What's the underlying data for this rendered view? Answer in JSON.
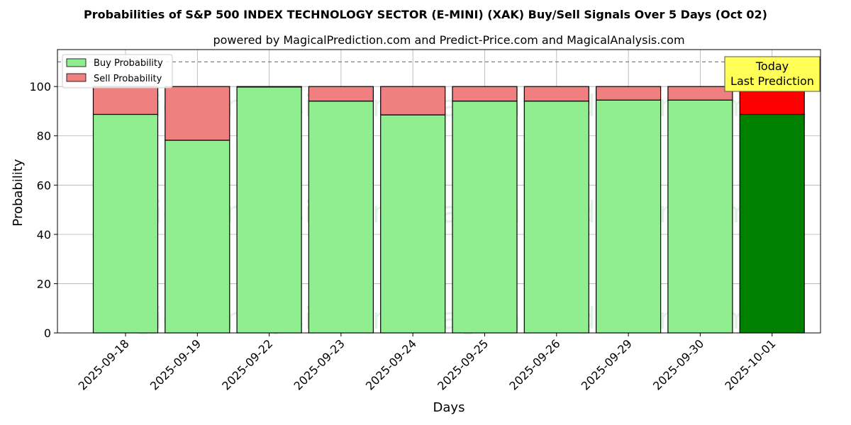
{
  "chart_data": {
    "type": "bar",
    "stacked": true,
    "title": "Probabilities of S&P 500 INDEX TECHNOLOGY SECTOR (E-MINI) (XAK) Buy/Sell Signals Over 5 Days (Oct 02)",
    "subtitle": "powered by MagicalPrediction.com and Predict-Price.com and MagicalAnalysis.com",
    "xlabel": "Days",
    "ylabel": "Probability",
    "ylim": [
      0,
      115
    ],
    "yticks": [
      0,
      20,
      40,
      60,
      80,
      100
    ],
    "reference_line": 110,
    "grid": true,
    "legend_position": "top-left",
    "categories": [
      "2025-09-18",
      "2025-09-19",
      "2025-09-22",
      "2025-09-23",
      "2025-09-24",
      "2025-09-25",
      "2025-09-26",
      "2025-09-29",
      "2025-09-30",
      "2025-10-01"
    ],
    "series": [
      {
        "name": "Buy Probability",
        "color": "#90ee90",
        "highlight_color": "#008000",
        "values": [
          88.7,
          78.2,
          99.8,
          94.1,
          88.5,
          94.1,
          94.1,
          94.5,
          94.5,
          88.7
        ]
      },
      {
        "name": "Sell Probability",
        "color": "#f08080",
        "highlight_color": "#ff0000",
        "values": [
          11.3,
          21.8,
          0.2,
          5.9,
          11.5,
          5.9,
          5.9,
          5.5,
          5.5,
          11.3
        ]
      }
    ],
    "highlight_index": 9,
    "annotation": {
      "line1": "Today",
      "line2": "Last Prediction",
      "color": "#ffff55"
    },
    "watermarks": [
      "MagicalAnalysis.com",
      "MagicalPrediction.com"
    ]
  }
}
